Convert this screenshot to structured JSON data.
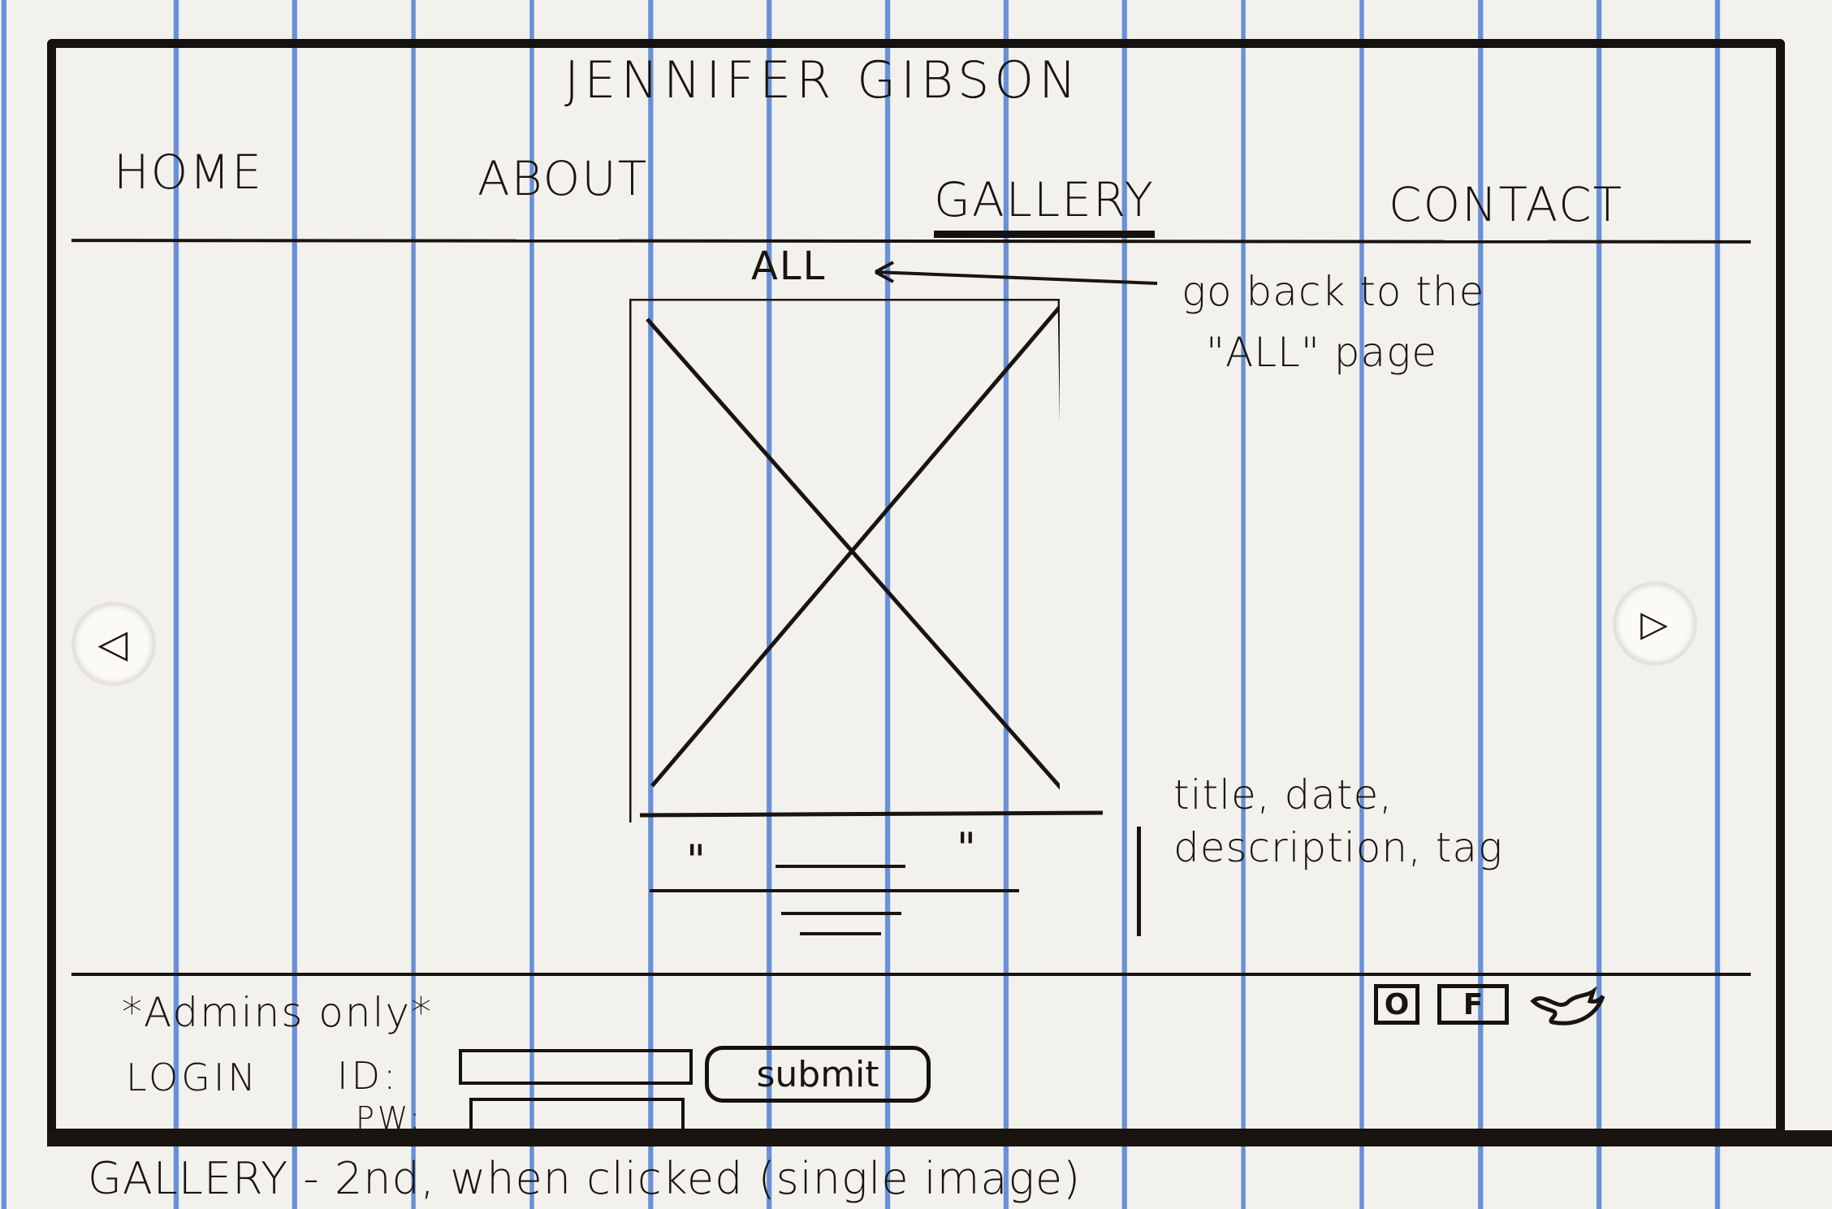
{
  "header": {
    "site_title": "JENNIFER GIBSON"
  },
  "nav": {
    "items": [
      {
        "label": "HOME"
      },
      {
        "label": "ABOUT"
      },
      {
        "label": "GALLERY",
        "active": true
      },
      {
        "label": "CONTACT"
      }
    ]
  },
  "gallery": {
    "all_link": "ALL",
    "all_arrow": "←",
    "note_back": "go back to the",
    "note_back_2": "\"ALL\" page",
    "caption_open_quote": "\"",
    "caption_close_quote": "\"",
    "note_info": "title, date,",
    "note_info_2": "description, tag",
    "prev_icon": "◁",
    "next_icon": "▷"
  },
  "footer": {
    "admin_note": "*Admins only*",
    "login_label": "LOGIN",
    "id_label": "ID:",
    "pw_label": "PW:",
    "id_value": "",
    "pw_value": "",
    "submit_label": "submit",
    "social_icons": [
      "instagram-icon",
      "facebook-icon",
      "twitter-icon"
    ],
    "facebook_glyph": "F",
    "instagram_glyph": "O"
  },
  "sheet_caption": "GALLERY - 2nd, when clicked (single image)"
}
